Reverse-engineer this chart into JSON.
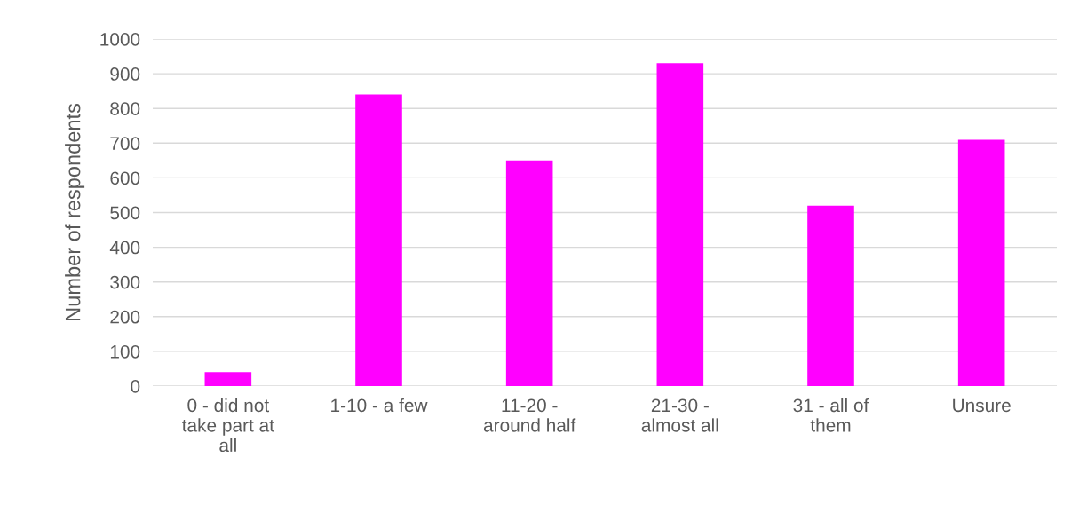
{
  "chart_data": {
    "type": "bar",
    "categories": [
      "0 - did not take part at all",
      "1-10 - a few",
      "11-20 - around half",
      "21-30 - almost all",
      "31 - all of them",
      "Unsure"
    ],
    "values": [
      40,
      840,
      650,
      930,
      520,
      710
    ],
    "color": "#ff00ff",
    "ylabel": "Number of respondents",
    "ylim": [
      0,
      1000
    ],
    "yticks": [
      0,
      100,
      200,
      300,
      400,
      500,
      600,
      700,
      800,
      900,
      1000
    ],
    "grid": "y",
    "legend": false
  }
}
